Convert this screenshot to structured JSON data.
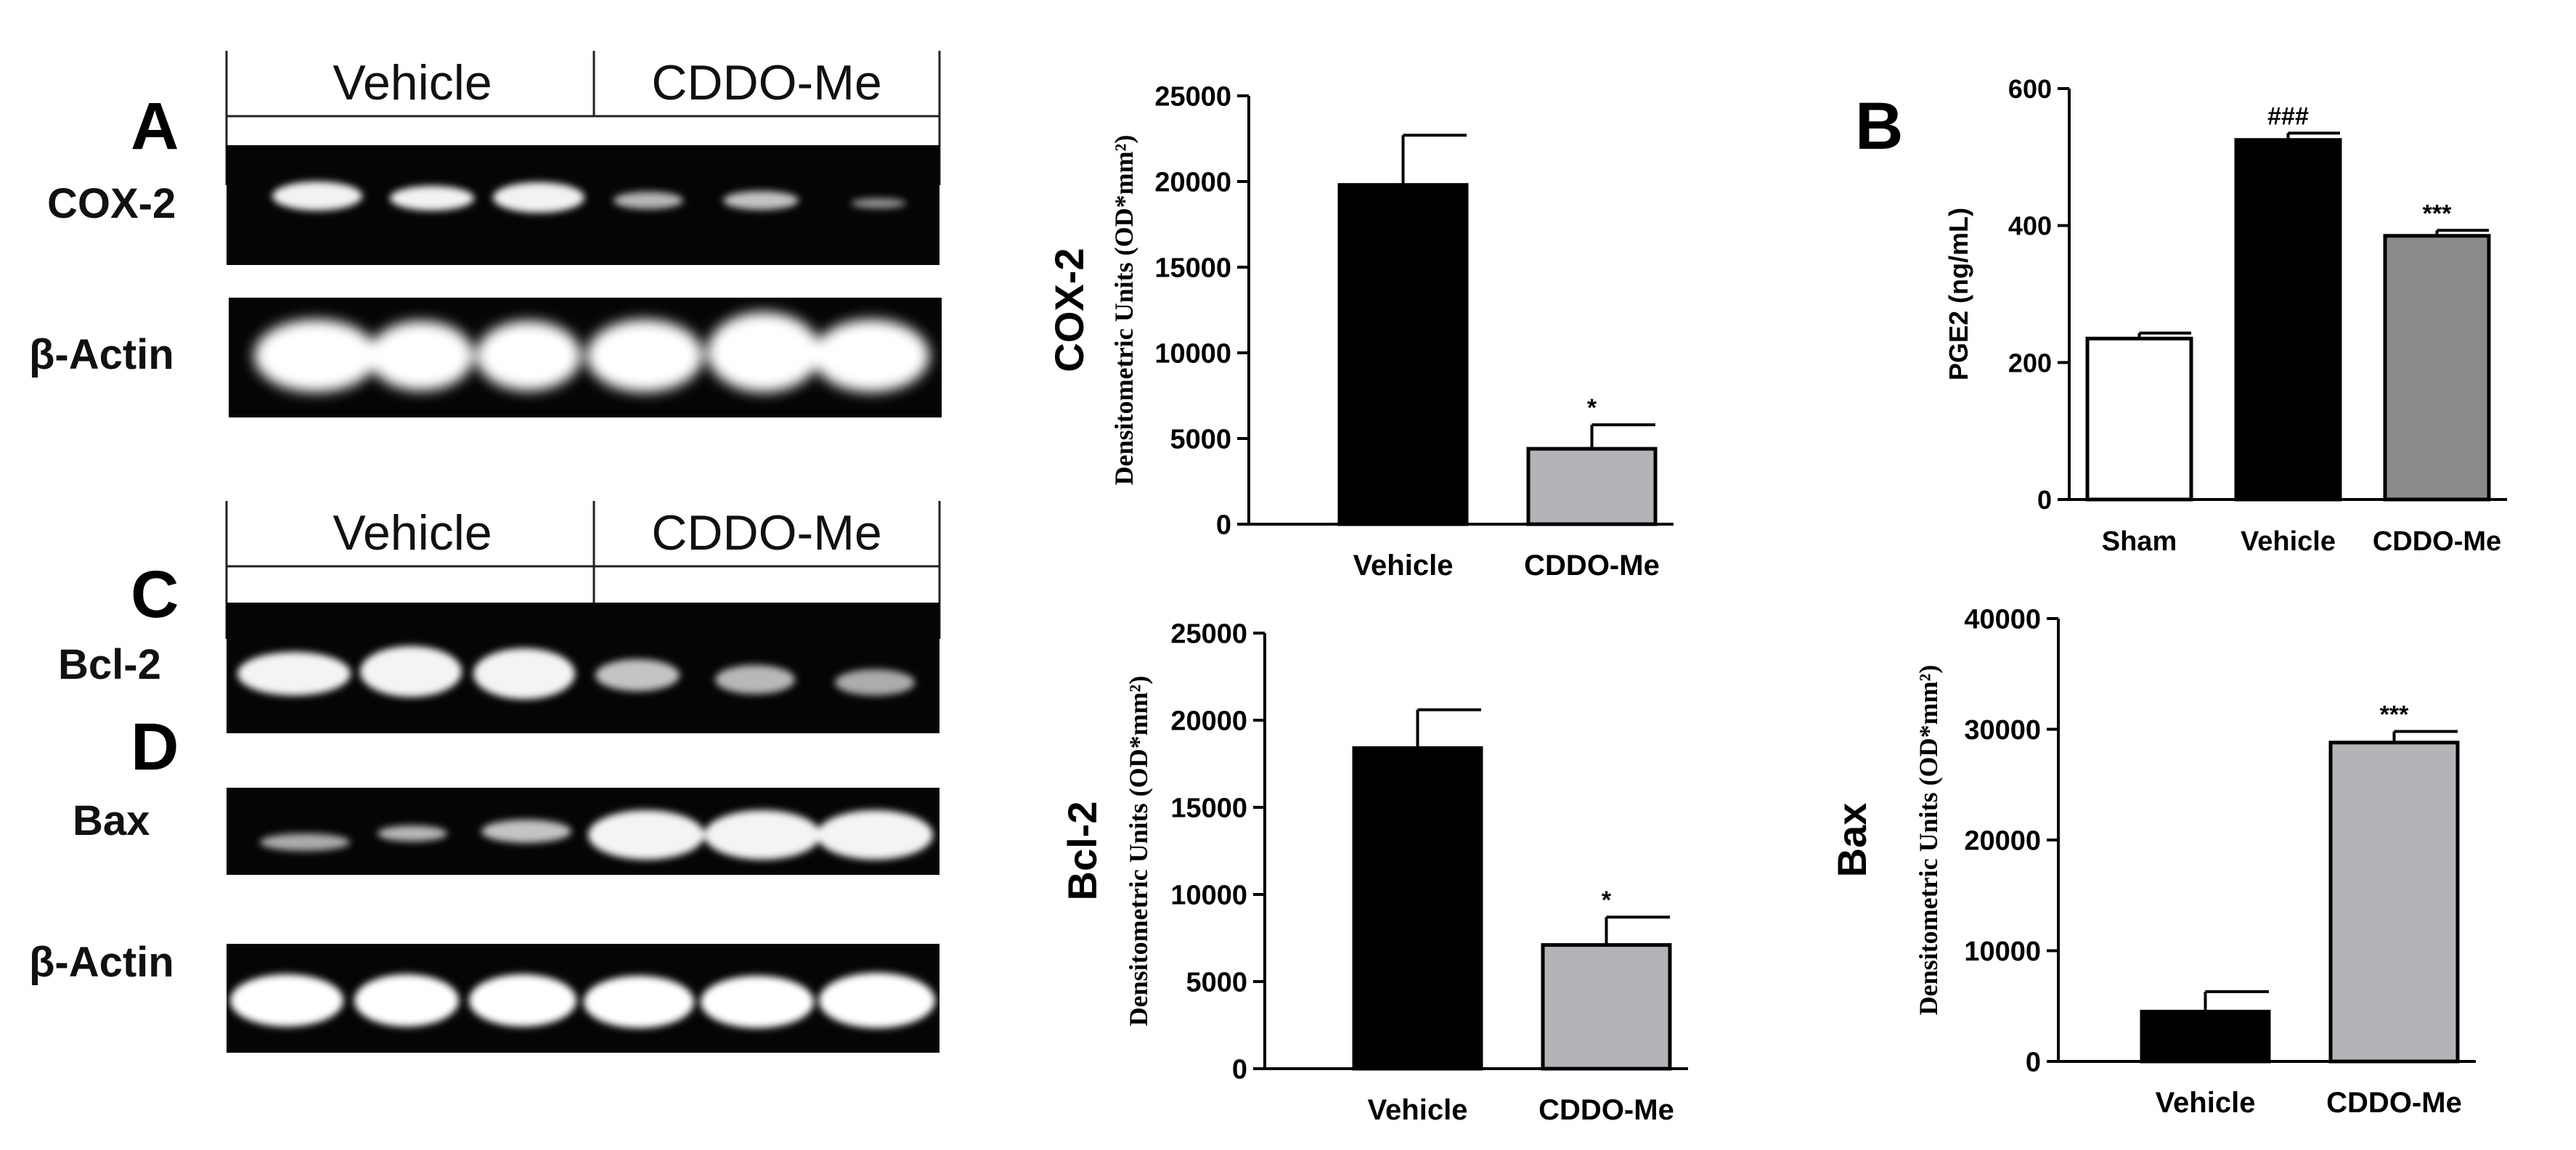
{
  "panel_letters": {
    "a": "A",
    "b": "B",
    "c": "C",
    "d": "D"
  },
  "blots": {
    "top": {
      "groups": [
        "Vehicle",
        "CDDO-Me"
      ],
      "row1_label": "COX-2",
      "row2_label": "β-Actin"
    },
    "bottom": {
      "groups": [
        "Vehicle",
        "CDDO-Me"
      ],
      "row1_label": "Bcl-2",
      "row2_label": "Bax",
      "row3_label": "β-Actin"
    }
  },
  "colors": {
    "vehicle": "#000000",
    "cddo": "#b3b3b8",
    "cddo_dark": "#8a8a8a",
    "sham": "#ffffff"
  },
  "chart_data": [
    {
      "id": "cox2",
      "type": "bar",
      "title": "COX-2",
      "ylabel": "Densitometric Units (OD*mm²)",
      "categories": [
        "Vehicle",
        "CDDO-Me"
      ],
      "values": [
        19800,
        4400
      ],
      "errors": [
        2900,
        1400
      ],
      "significance": [
        "",
        "*"
      ],
      "ylim": [
        0,
        25000
      ],
      "yticks": [
        0,
        5000,
        10000,
        15000,
        20000,
        25000
      ]
    },
    {
      "id": "pge2",
      "type": "bar",
      "ylabel": "PGE2 (ng/mL)",
      "categories": [
        "Sham",
        "Vehicle",
        "CDDO-Me"
      ],
      "values": [
        235,
        525,
        385
      ],
      "errors": [
        8,
        10,
        8
      ],
      "significance": [
        "",
        "###",
        "***"
      ],
      "ylim": [
        0,
        600
      ],
      "yticks": [
        0,
        200,
        400,
        600
      ]
    },
    {
      "id": "bcl2",
      "type": "bar",
      "title": "Bcl-2",
      "ylabel": "Densitometric Units (OD*mm²)",
      "categories": [
        "Vehicle",
        "CDDO-Me"
      ],
      "values": [
        18400,
        7100
      ],
      "errors": [
        2200,
        1600
      ],
      "significance": [
        "",
        "*"
      ],
      "ylim": [
        0,
        25000
      ],
      "yticks": [
        0,
        5000,
        10000,
        15000,
        20000,
        25000
      ]
    },
    {
      "id": "bax",
      "type": "bar",
      "title": "Bax",
      "ylabel": "Densitometric Units (OD*mm²)",
      "categories": [
        "Vehicle",
        "CDDO-Me"
      ],
      "values": [
        4500,
        28800
      ],
      "errors": [
        1800,
        1000
      ],
      "significance": [
        "",
        "***"
      ],
      "ylim": [
        0,
        40000
      ],
      "yticks": [
        0,
        10000,
        20000,
        30000,
        40000
      ]
    }
  ]
}
